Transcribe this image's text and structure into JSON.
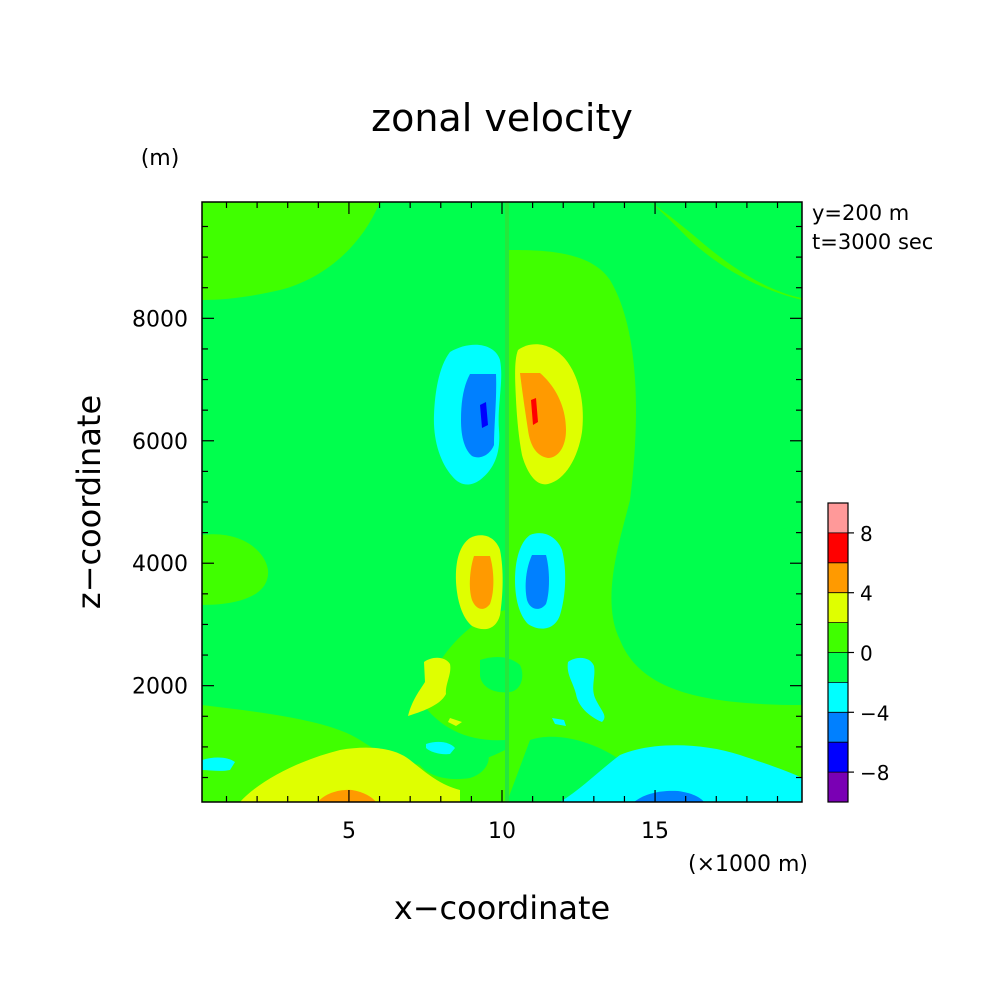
{
  "chart_data": {
    "type": "heatmap",
    "title": "zonal velocity",
    "xlabel": "x−coordinate",
    "ylabel": "z−coordinate",
    "x_unit": "(×1000 m)",
    "y_unit": "(m)",
    "annotations": [
      "y=200 m",
      "t=3000 sec"
    ],
    "xlim": [
      0.2,
      19.8
    ],
    "ylim": [
      100,
      9900
    ],
    "x_ticks": [
      5,
      10,
      15
    ],
    "x_tick_labels": [
      "5",
      "10",
      "15"
    ],
    "y_ticks": [
      2000,
      4000,
      6000,
      8000
    ],
    "y_tick_labels": [
      "2000",
      "4000",
      "6000",
      "8000"
    ],
    "background_color": "#00ff4d",
    "colorbar": {
      "levels": [
        -10,
        -8,
        -6,
        -4,
        -2,
        0,
        2,
        4,
        6,
        8,
        10
      ],
      "tick_labels": [
        "8",
        "4",
        "0",
        "−4",
        "−8"
      ],
      "tick_values": [
        8,
        4,
        0,
        -4,
        -8
      ],
      "colors": [
        "#7a00b4",
        "#0000ff",
        "#0080ff",
        "#00ffff",
        "#00ff4d",
        "#40ff00",
        "#dfff00",
        "#ff9a00",
        "#ff0000",
        "#ff9999"
      ]
    },
    "regions": [
      {
        "label": "positive upper-right lobe",
        "cx": 11.2,
        "cz": 6300,
        "range": "2 to 8"
      },
      {
        "label": "negative upper-left lobe",
        "cx": 9.0,
        "cz": 6300,
        "range": "-8 to -2"
      },
      {
        "label": "positive mid-left lobe",
        "cx": 9.0,
        "cz": 3700,
        "range": "2 to 6"
      },
      {
        "label": "negative mid-right lobe",
        "cx": 11.0,
        "cz": 3700,
        "range": "-6 to -2"
      },
      {
        "label": "positive bottom-left band",
        "cx": 5.0,
        "cz": 300,
        "range": "0 to 6"
      },
      {
        "label": "negative bottom-right band",
        "cx": 15.5,
        "cz": 300,
        "range": "-6 to 0"
      }
    ]
  }
}
